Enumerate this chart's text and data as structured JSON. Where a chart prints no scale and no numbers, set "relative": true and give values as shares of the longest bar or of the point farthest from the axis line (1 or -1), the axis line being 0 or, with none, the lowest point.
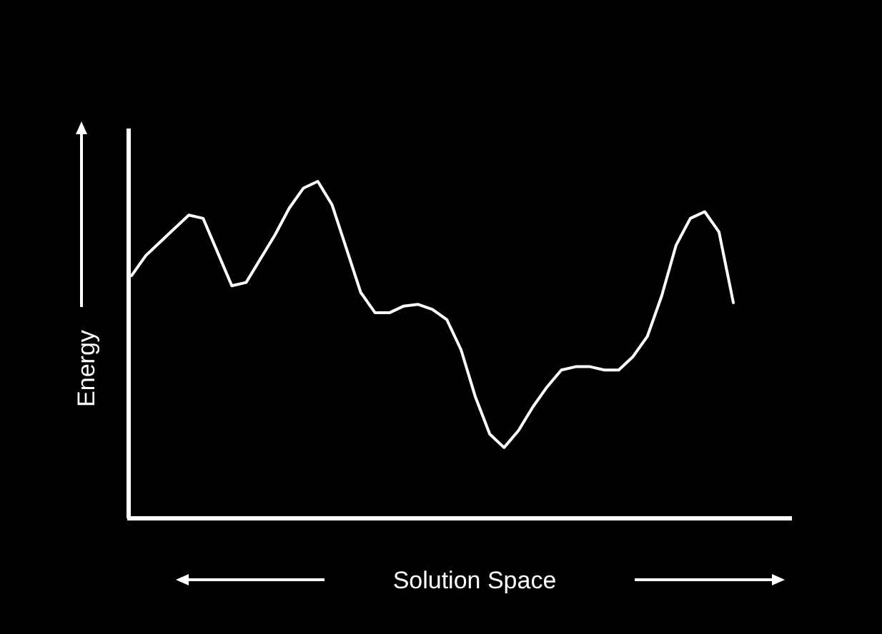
{
  "chart_data": {
    "type": "line",
    "relative": true,
    "xlabel": "Solution Space",
    "ylabel": "Energy",
    "categories": [
      null,
      null,
      null,
      null,
      null,
      null,
      null,
      null,
      null,
      null,
      null,
      null,
      null,
      null,
      null,
      null,
      null,
      null,
      null,
      null,
      null,
      null,
      null,
      null,
      null,
      null,
      null,
      null,
      null,
      null,
      null,
      null,
      null,
      null,
      null,
      null,
      null,
      null,
      null,
      null,
      null,
      null,
      null
    ],
    "series": [
      {
        "color": "#ffffff",
        "values": [
          0.72,
          0.78,
          0.82,
          0.86,
          0.9,
          0.89,
          0.79,
          0.69,
          0.7,
          0.77,
          0.84,
          0.92,
          0.98,
          1,
          0.93,
          0.8,
          0.67,
          0.61,
          0.61,
          0.63,
          0.635,
          0.62,
          0.59,
          0.5,
          0.36,
          0.25,
          0.21,
          0.26,
          0.33,
          0.39,
          0.44,
          0.45,
          0.45,
          0.44,
          0.44,
          0.48,
          0.54,
          0.66,
          0.81,
          0.89,
          0.91,
          0.85,
          0.64
        ]
      }
    ],
    "marker": "none",
    "line_style": "solid"
  }
}
